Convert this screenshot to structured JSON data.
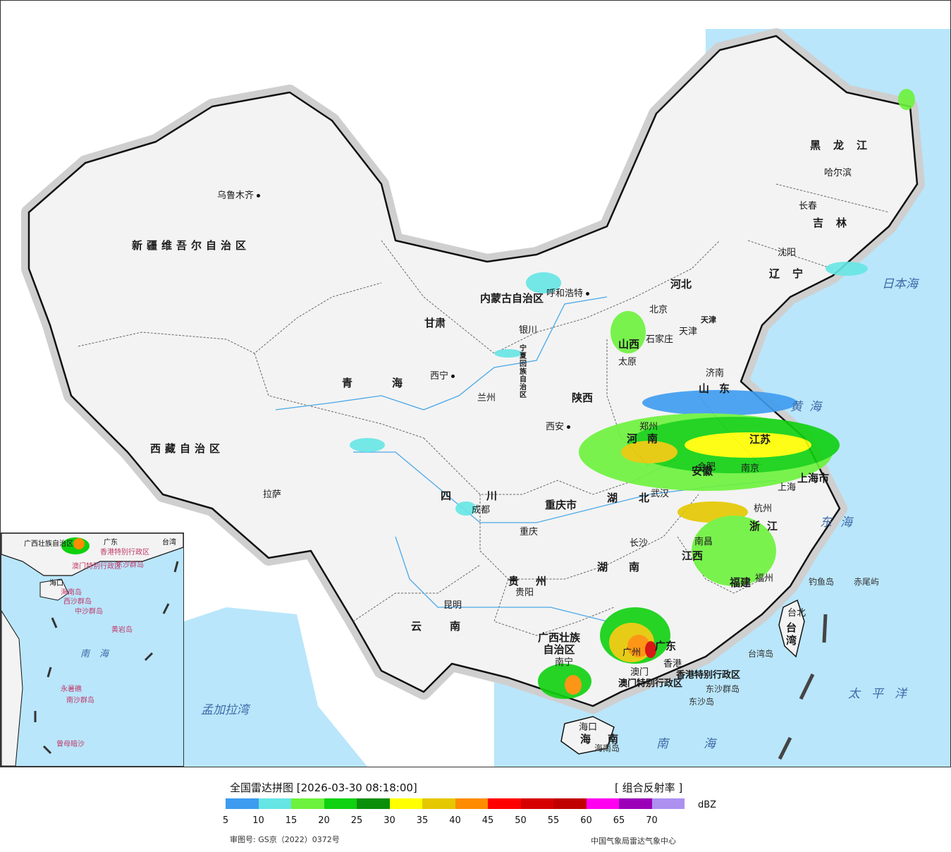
{
  "map": {
    "provinces": [
      "新疆维吾尔自治区",
      "西藏自治区",
      "青海",
      "甘肃",
      "内蒙古自治区",
      "黑龙江",
      "吉林",
      "辽宁",
      "河北",
      "山西",
      "山东",
      "河南",
      "陕西",
      "四川",
      "重庆市",
      "湖北",
      "湖南",
      "江西",
      "安徽",
      "江苏",
      "浙江",
      "福建",
      "广东",
      "广西壮族自治区",
      "贵州",
      "云南",
      "海南",
      "台湾",
      "宁夏回族自治区",
      "上海市",
      "天津",
      "香港特别行政区",
      "澳门特别行政区"
    ],
    "cities": [
      "乌鲁木齐",
      "拉萨",
      "西宁",
      "兰州",
      "银川",
      "呼和浩特",
      "北京",
      "天津",
      "石家庄",
      "太原",
      "济南",
      "西安",
      "郑州",
      "合肥",
      "南京",
      "上海",
      "杭州",
      "武汉",
      "长沙",
      "南昌",
      "福州",
      "台北",
      "成都",
      "重庆",
      "贵阳",
      "昆明",
      "南宁",
      "广州",
      "香港",
      "澳门",
      "海口",
      "哈尔滨",
      "长春",
      "沈阳"
    ],
    "seas": [
      "日本海",
      "黄海",
      "东海",
      "南海",
      "太平洋",
      "孟加拉湾"
    ],
    "islands": [
      "钓鱼岛",
      "赤尾屿",
      "台湾岛",
      "东沙群岛",
      "东沙岛",
      "海南岛"
    ],
    "inset_labels": [
      "广西壮族自治区",
      "广东",
      "香港特别行政区",
      "澳门特别行政区",
      "海口",
      "海南岛",
      "西沙群岛",
      "中沙群岛",
      "黄岩岛",
      "南海",
      "永暑礁",
      "南沙群岛",
      "曾母暗沙",
      "东沙群岛",
      "台湾"
    ]
  },
  "legend": {
    "title": "全国雷达拼图 [2026-03-30 08:18:00]",
    "product": "[ 组合反射率 ]",
    "unit": "dBZ",
    "approval": "审图号: GS京（2022）0372号",
    "source": "中国气象局雷达气象中心",
    "ticks": [
      "5",
      "10",
      "15",
      "20",
      "25",
      "30",
      "35",
      "40",
      "45",
      "50",
      "55",
      "60",
      "65",
      "70"
    ],
    "colors": [
      "#3d9cf0",
      "#66e5e5",
      "#6cf23c",
      "#0fd10f",
      "#0a8f0a",
      "#ffff00",
      "#e5c800",
      "#ff8c00",
      "#ff0000",
      "#d60000",
      "#c00000",
      "#ff00f0",
      "#9b00b8",
      "#ad90f0"
    ]
  }
}
